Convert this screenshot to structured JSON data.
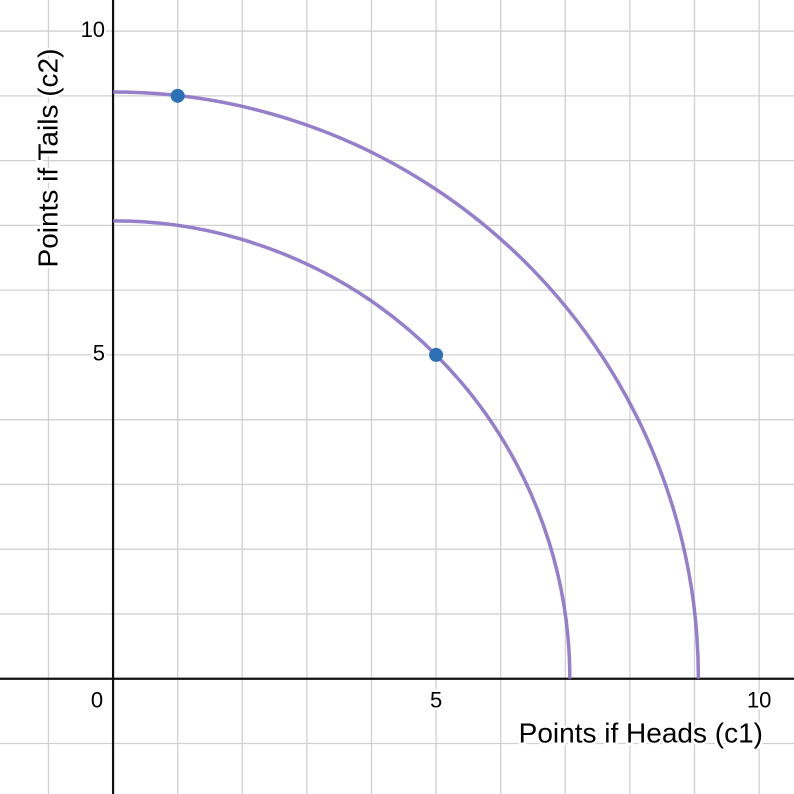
{
  "chart_data": {
    "type": "scatter",
    "x_label": "Points if Heads (c1)",
    "y_label": "Points if Tails (c2)",
    "xlim": [
      -1.75,
      10.54
    ],
    "ylim": [
      -1.78,
      10.48
    ],
    "xticks": [
      0,
      5,
      10
    ],
    "yticks": [
      5,
      10
    ],
    "grid_x": [
      -1,
      0,
      1,
      2,
      3,
      4,
      5,
      6,
      7,
      8,
      9,
      10
    ],
    "grid_y": [
      -1,
      0,
      1,
      2,
      3,
      4,
      5,
      6,
      7,
      8,
      9,
      10
    ],
    "curves": [
      {
        "radius": 7.07,
        "color": "#8a70c4"
      },
      {
        "radius": 9.06,
        "color": "#8a70c4"
      }
    ],
    "points": {
      "x": [
        1,
        5
      ],
      "y": [
        9,
        5
      ],
      "color": "#2d6fb5"
    }
  }
}
